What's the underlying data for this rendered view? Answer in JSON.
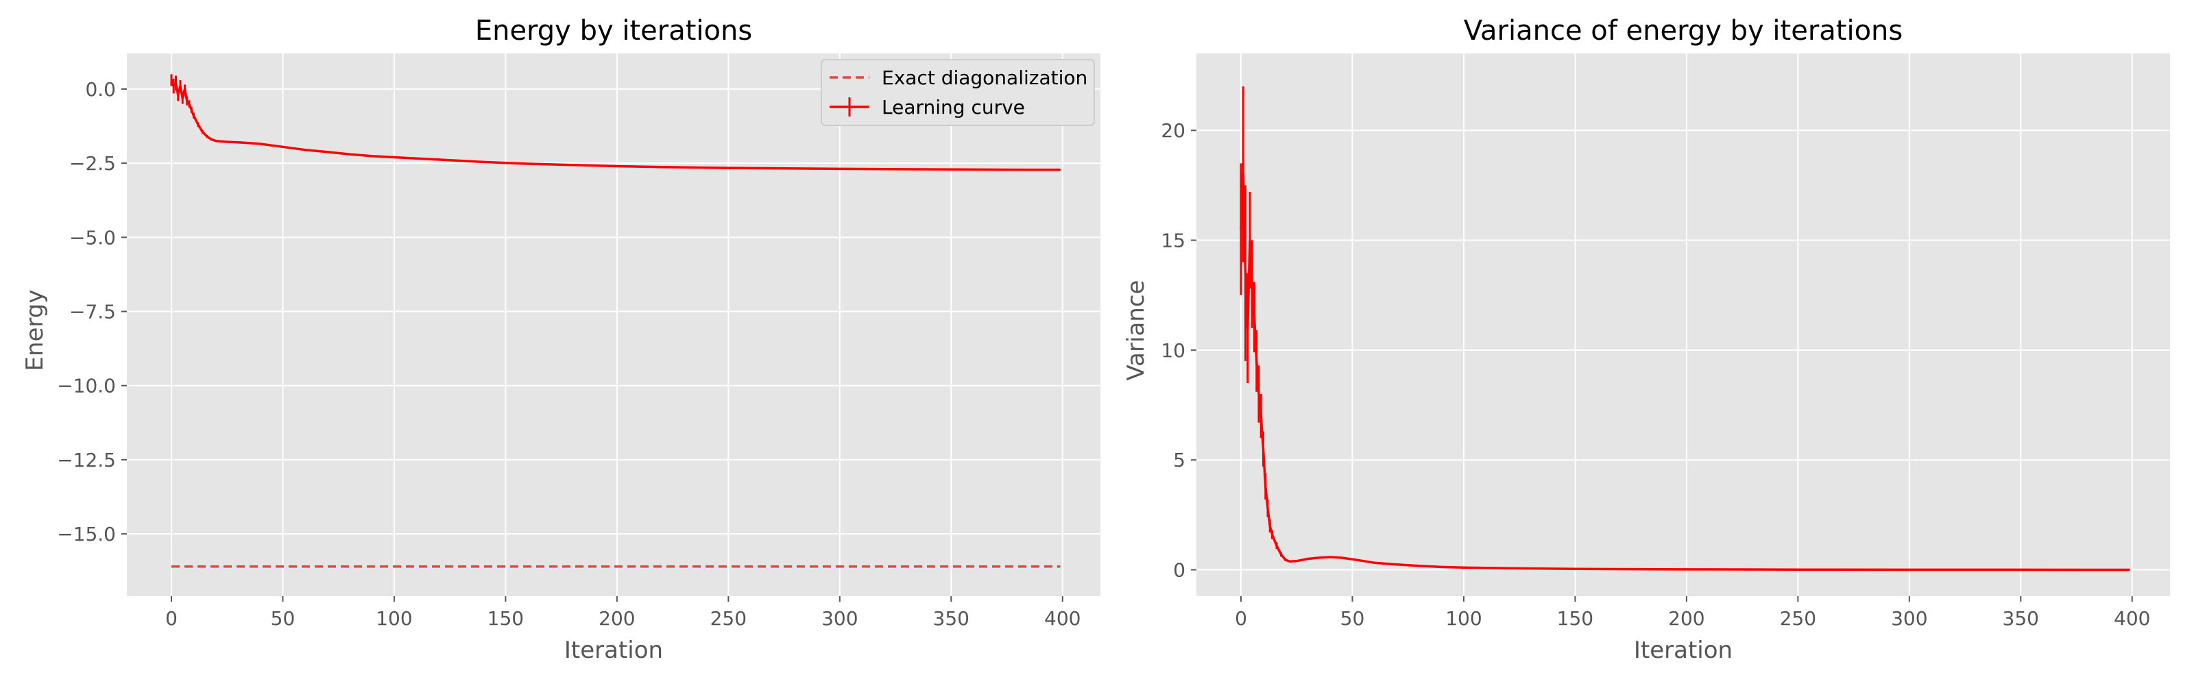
{
  "colors": {
    "background": "#ffffff",
    "plot_background": "#e5e5e5",
    "grid": "#ffffff",
    "curve": "#ff0000",
    "exact_line": "#e24a33",
    "tick_text": "#555555"
  },
  "chart_data": [
    {
      "type": "line",
      "title": "Energy by iterations",
      "xlabel": "Iteration",
      "ylabel": "Energy",
      "xlim": [
        -20,
        417
      ],
      "ylim": [
        -17.1,
        1.2
      ],
      "xticks": [
        0,
        50,
        100,
        150,
        200,
        250,
        300,
        350,
        400
      ],
      "yticks": [
        0.0,
        -2.5,
        -5.0,
        -7.5,
        -10.0,
        -12.5,
        -15.0
      ],
      "ytick_labels": [
        "0.0",
        "−2.5",
        "−5.0",
        "−7.5",
        "−10.0",
        "−12.5",
        "−15.0"
      ],
      "grid": true,
      "legend_position": "top-right",
      "legend": [
        "Exact diagonalization",
        "Learning curve"
      ],
      "series": [
        {
          "name": "Exact diagonalization",
          "style": "dashed",
          "x": [
            0,
            399
          ],
          "y": [
            -16.1,
            -16.1
          ]
        },
        {
          "name": "Learning curve",
          "style": "solid-errorbar",
          "x": [
            0,
            1,
            2,
            3,
            4,
            5,
            6,
            7,
            8,
            9,
            10,
            12,
            14,
            16,
            18,
            20,
            25,
            30,
            35,
            40,
            45,
            50,
            60,
            70,
            80,
            90,
            100,
            120,
            140,
            160,
            180,
            200,
            220,
            250,
            280,
            300,
            320,
            350,
            380,
            399
          ],
          "y": [
            0.3,
            0.1,
            0.2,
            -0.2,
            0.1,
            -0.3,
            0.0,
            -0.4,
            -0.5,
            -0.7,
            -0.9,
            -1.2,
            -1.45,
            -1.6,
            -1.7,
            -1.75,
            -1.78,
            -1.8,
            -1.82,
            -1.85,
            -1.9,
            -1.95,
            -2.05,
            -2.12,
            -2.2,
            -2.26,
            -2.3,
            -2.38,
            -2.46,
            -2.52,
            -2.56,
            -2.6,
            -2.63,
            -2.66,
            -2.68,
            -2.69,
            -2.7,
            -2.71,
            -2.72,
            -2.72
          ],
          "err": [
            0.2,
            0.25,
            0.25,
            0.2,
            0.2,
            0.2,
            0.15,
            0.15,
            0.12,
            0.1,
            0.1,
            0.08,
            0.06,
            0.05,
            0.04,
            0.03,
            0.03,
            0.03,
            0.03,
            0.03,
            0.03,
            0.03,
            0.02,
            0.02,
            0.02,
            0.02,
            0.02,
            0.01,
            0.01,
            0.01,
            0.01,
            0.01,
            0.01,
            0.01,
            0.01,
            0.01,
            0.01,
            0.01,
            0.01,
            0.01
          ]
        }
      ]
    },
    {
      "type": "line",
      "title": "Variance of energy by iterations",
      "xlabel": "Iteration",
      "ylabel": "Variance",
      "xlim": [
        -20,
        417
      ],
      "ylim": [
        -1.2,
        23.5
      ],
      "xticks": [
        0,
        50,
        100,
        150,
        200,
        250,
        300,
        350,
        400
      ],
      "yticks": [
        0,
        5,
        10,
        15,
        20
      ],
      "ytick_labels": [
        "0",
        "5",
        "10",
        "15",
        "20"
      ],
      "grid": true,
      "series": [
        {
          "style": "solid-errorbar",
          "x": [
            0,
            1,
            2,
            3,
            4,
            5,
            6,
            7,
            8,
            9,
            10,
            11,
            12,
            13,
            14,
            16,
            18,
            20,
            22,
            25,
            30,
            35,
            40,
            45,
            50,
            55,
            60,
            70,
            80,
            90,
            100,
            120,
            150,
            200,
            250,
            300,
            350,
            399
          ],
          "y": [
            15.5,
            18.0,
            13.5,
            11.0,
            15.0,
            13.0,
            11.5,
            9.5,
            8.0,
            7.0,
            5.5,
            3.8,
            2.8,
            2.0,
            1.6,
            1.1,
            0.7,
            0.45,
            0.38,
            0.4,
            0.5,
            0.55,
            0.58,
            0.55,
            0.48,
            0.4,
            0.32,
            0.24,
            0.18,
            0.13,
            0.1,
            0.07,
            0.04,
            0.02,
            0.01,
            0.005,
            0.003,
            0.002
          ],
          "err": [
            3.0,
            4.0,
            4.0,
            2.5,
            2.2,
            2.0,
            1.6,
            1.4,
            1.3,
            1.0,
            0.8,
            0.6,
            0.4,
            0.3,
            0.2,
            0.15,
            0.1,
            0.06,
            0.05,
            0.04,
            0.04,
            0.04,
            0.04,
            0.04,
            0.03,
            0.03,
            0.03,
            0.02,
            0.02,
            0.01,
            0.01,
            0.01,
            0.01,
            0.005,
            0.004,
            0.003,
            0.002,
            0.002
          ]
        }
      ]
    }
  ]
}
